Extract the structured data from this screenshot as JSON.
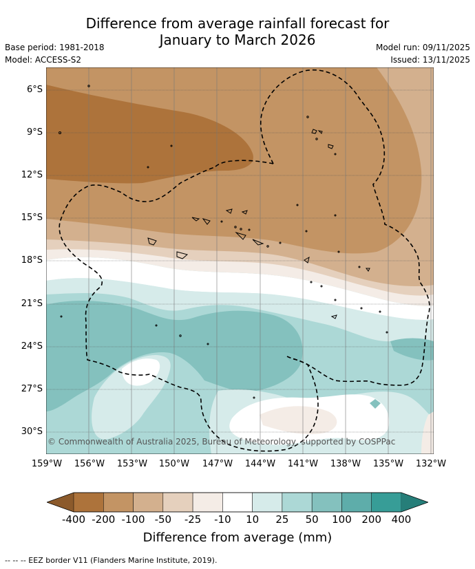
{
  "title_line1": "Difference from average rainfall forecast for",
  "title_line2": "January to March 2026",
  "base_period": "Base period: 1981-2018",
  "model": "Model: ACCESS-S2",
  "model_run": "Model run: 09/11/2025",
  "issued": "Issued: 13/11/2025",
  "lat_labels": [
    "6°S",
    "9°S",
    "12°S",
    "15°S",
    "18°S",
    "21°S",
    "24°S",
    "27°S",
    "30°S"
  ],
  "lon_labels": [
    "159°W",
    "156°W",
    "153°W",
    "150°W",
    "147°W",
    "144°W",
    "141°W",
    "138°W",
    "135°W",
    "132°W"
  ],
  "copyright": "© Commonwealth of Australia 2025, Bureau of Meteorology, supported by COSPPac",
  "colorbar": {
    "title": "Difference from average (mm)",
    "labels": [
      "-400",
      "-200",
      "-100",
      "-50",
      "-25",
      "-10",
      "10",
      "25",
      "50",
      "100",
      "200",
      "400"
    ],
    "colors": [
      "#8c5a2b",
      "#ad733b",
      "#c39464",
      "#d3b08e",
      "#e5d0bd",
      "#f4ece6",
      "#ffffff",
      "#d6ebea",
      "#acd8d6",
      "#84c1be",
      "#5eadaa",
      "#379d97",
      "#267e79"
    ]
  },
  "footnote": "-- -- -- EEZ border V11 (Flanders Marine Institute, 2019)."
}
